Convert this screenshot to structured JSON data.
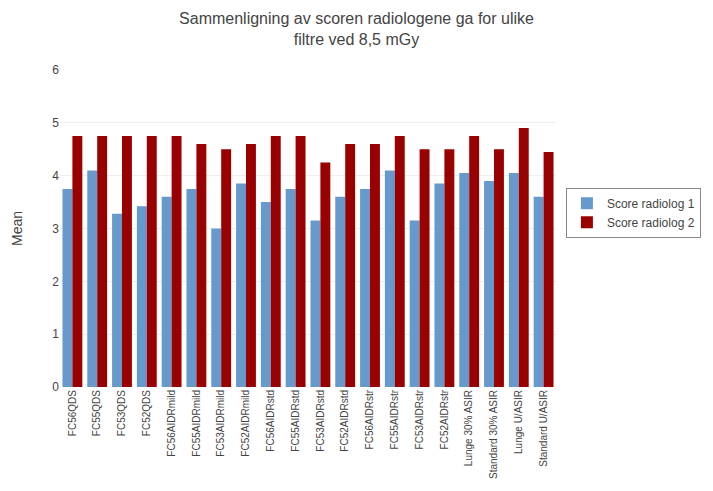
{
  "chart_data": {
    "type": "bar",
    "title": "Sammenligning av scoren radiologene ga for ulike\nfiltre ved 8,5 mGy",
    "ylabel": "Mean",
    "categories": [
      "FC56QDS",
      "FC55QDS",
      "FC53QDS",
      "FC52QDS",
      "FC56AIDRmild",
      "FC55AIDRmild",
      "FC53AIDRmild",
      "FC52AIDRmild",
      "FC56AIDRstd",
      "FC55AIDRstd",
      "FC53AIDRstd",
      "FC52AIDRstd",
      "FC56AIDRstr",
      "FC55AIDRstr",
      "FC53AIDRstr",
      "FC52AIDRstr",
      "Lunge 30% ASIR",
      "Standard 30% ASIR",
      "Lunge U/ASIR",
      "Standard U/ASIR"
    ],
    "series": [
      {
        "name": "Score radiolog 1",
        "color": "#6699CC",
        "values": [
          3.75,
          4.1,
          3.28,
          3.42,
          3.6,
          3.75,
          3.0,
          3.85,
          3.5,
          3.75,
          3.15,
          3.6,
          3.75,
          4.1,
          3.15,
          3.85,
          4.05,
          3.9,
          4.05,
          3.6
        ]
      },
      {
        "name": "Score radiolog 2",
        "color": "#990000",
        "values": [
          4.75,
          4.75,
          4.75,
          4.75,
          4.75,
          4.6,
          4.5,
          4.6,
          4.75,
          4.75,
          4.25,
          4.6,
          4.6,
          4.75,
          4.5,
          4.5,
          4.75,
          4.5,
          4.9,
          4.45
        ]
      }
    ],
    "ylim": [
      0,
      6
    ],
    "yticks": [
      0,
      1,
      2,
      3,
      4,
      5,
      6
    ],
    "grid": true,
    "legend": "right"
  }
}
